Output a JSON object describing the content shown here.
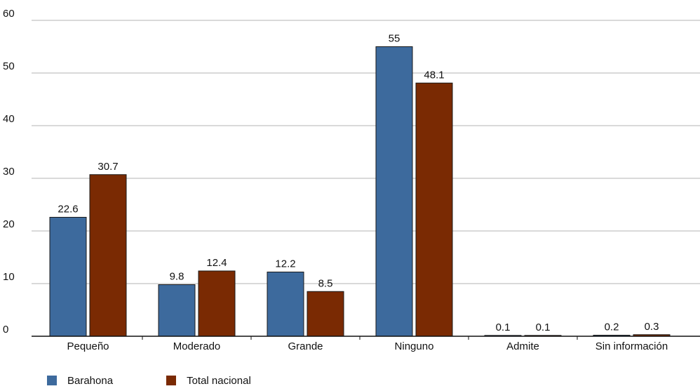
{
  "chart_data": {
    "type": "bar",
    "categories": [
      "Pequeño",
      "Moderado",
      "Grande",
      "Ninguno",
      "Admite",
      "Sin información"
    ],
    "series": [
      {
        "name": "Barahona",
        "color": "#3d6a9d",
        "values": [
          22.6,
          9.8,
          12.2,
          55,
          0.1,
          0.2
        ],
        "labels": [
          "22.6",
          "9.8",
          "12.2",
          "55",
          "0.1",
          "0.2"
        ]
      },
      {
        "name": "Total nacional",
        "color": "#7a2a03",
        "values": [
          30.7,
          12.4,
          8.5,
          48.1,
          0.1,
          0.3
        ],
        "labels": [
          "30.7",
          "12.4",
          "8.5",
          "48.1",
          "0.1",
          "0.3"
        ]
      }
    ],
    "yticks": [
      "0",
      "10",
      "20",
      "30",
      "40",
      "50",
      "60"
    ],
    "ylim": [
      0,
      60
    ],
    "title": "",
    "xlabel": "",
    "ylabel": "",
    "grid": true,
    "legend_position": "bottom-left"
  }
}
